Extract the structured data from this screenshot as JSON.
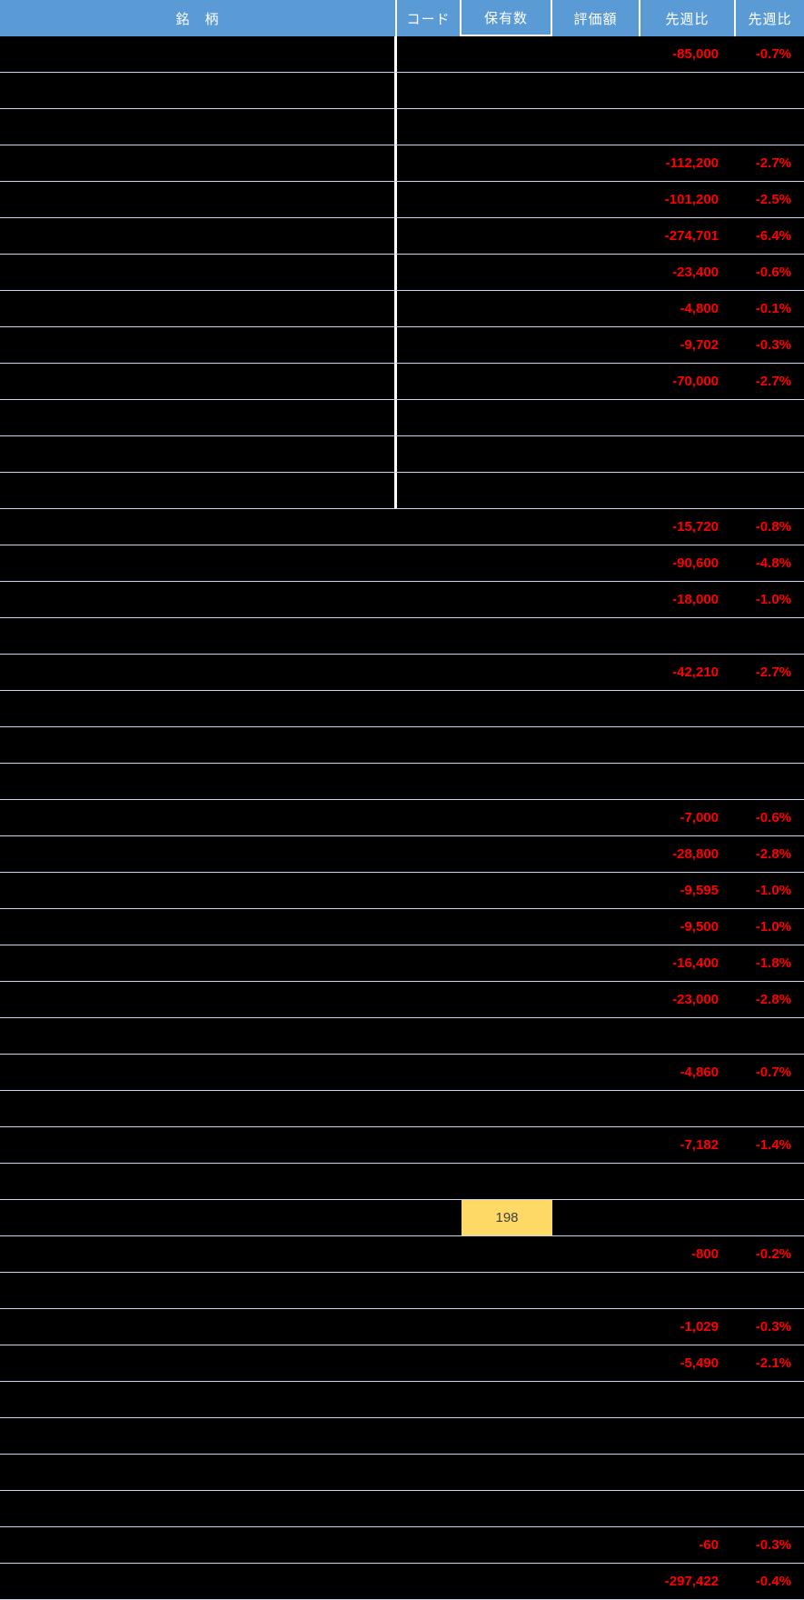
{
  "colors": {
    "header_bg": "#5b9bd5",
    "header_text": "#ffffff",
    "row_bg": "#000000",
    "gridline": "#c9d6e8",
    "divider": "#ffffff",
    "negative": "#ff0000",
    "highlight_bg": "#ffd966",
    "highlight_text": "#3f3f3f"
  },
  "table": {
    "columns": [
      {
        "key": "name",
        "label": "銘　柄"
      },
      {
        "key": "code",
        "label": "コード"
      },
      {
        "key": "holdings",
        "label": "保有数"
      },
      {
        "key": "valuation",
        "label": "評価額"
      },
      {
        "key": "wow",
        "label": "先週比"
      },
      {
        "key": "wow_pct",
        "label": "先週比"
      }
    ],
    "highlight": {
      "row": 33,
      "column": "holdings",
      "value": "198"
    },
    "rows": [
      {
        "name": "",
        "code": "",
        "holdings": "",
        "valuation": "",
        "wow": "-85,000",
        "wow_pct": "-0.7%"
      },
      {
        "name": "",
        "code": "",
        "holdings": "",
        "valuation": "",
        "wow": "",
        "wow_pct": ""
      },
      {
        "name": "",
        "code": "",
        "holdings": "",
        "valuation": "",
        "wow": "",
        "wow_pct": ""
      },
      {
        "name": "",
        "code": "",
        "holdings": "",
        "valuation": "",
        "wow": "-112,200",
        "wow_pct": "-2.7%"
      },
      {
        "name": "",
        "code": "",
        "holdings": "",
        "valuation": "",
        "wow": "-101,200",
        "wow_pct": "-2.5%"
      },
      {
        "name": "",
        "code": "",
        "holdings": "",
        "valuation": "",
        "wow": "-274,701",
        "wow_pct": "-6.4%"
      },
      {
        "name": "",
        "code": "",
        "holdings": "",
        "valuation": "",
        "wow": "-23,400",
        "wow_pct": "-0.6%"
      },
      {
        "name": "",
        "code": "",
        "holdings": "",
        "valuation": "",
        "wow": "-4,800",
        "wow_pct": "-0.1%"
      },
      {
        "name": "",
        "code": "",
        "holdings": "",
        "valuation": "",
        "wow": "-9,702",
        "wow_pct": "-0.3%"
      },
      {
        "name": "",
        "code": "",
        "holdings": "",
        "valuation": "",
        "wow": "-70,000",
        "wow_pct": "-2.7%"
      },
      {
        "name": "",
        "code": "",
        "holdings": "",
        "valuation": "",
        "wow": "",
        "wow_pct": ""
      },
      {
        "name": "",
        "code": "",
        "holdings": "",
        "valuation": "",
        "wow": "",
        "wow_pct": ""
      },
      {
        "name": "",
        "code": "",
        "holdings": "",
        "valuation": "",
        "wow": "",
        "wow_pct": ""
      },
      {
        "name": "",
        "code": "",
        "holdings": "",
        "valuation": "",
        "wow": "-15,720",
        "wow_pct": "-0.8%"
      },
      {
        "name": "",
        "code": "",
        "holdings": "",
        "valuation": "",
        "wow": "-90,600",
        "wow_pct": "-4.8%"
      },
      {
        "name": "",
        "code": "",
        "holdings": "",
        "valuation": "",
        "wow": "-18,000",
        "wow_pct": "-1.0%"
      },
      {
        "name": "",
        "code": "",
        "holdings": "",
        "valuation": "",
        "wow": "",
        "wow_pct": ""
      },
      {
        "name": "",
        "code": "",
        "holdings": "",
        "valuation": "",
        "wow": "-42,210",
        "wow_pct": "-2.7%"
      },
      {
        "name": "",
        "code": "",
        "holdings": "",
        "valuation": "",
        "wow": "",
        "wow_pct": ""
      },
      {
        "name": "",
        "code": "",
        "holdings": "",
        "valuation": "",
        "wow": "",
        "wow_pct": ""
      },
      {
        "name": "",
        "code": "",
        "holdings": "",
        "valuation": "",
        "wow": "",
        "wow_pct": ""
      },
      {
        "name": "",
        "code": "",
        "holdings": "",
        "valuation": "",
        "wow": "-7,000",
        "wow_pct": "-0.6%"
      },
      {
        "name": "",
        "code": "",
        "holdings": "",
        "valuation": "",
        "wow": "-28,800",
        "wow_pct": "-2.8%"
      },
      {
        "name": "",
        "code": "",
        "holdings": "",
        "valuation": "",
        "wow": "-9,595",
        "wow_pct": "-1.0%"
      },
      {
        "name": "",
        "code": "",
        "holdings": "",
        "valuation": "",
        "wow": "-9,500",
        "wow_pct": "-1.0%"
      },
      {
        "name": "",
        "code": "",
        "holdings": "",
        "valuation": "",
        "wow": "-16,400",
        "wow_pct": "-1.8%"
      },
      {
        "name": "",
        "code": "",
        "holdings": "",
        "valuation": "",
        "wow": "-23,000",
        "wow_pct": "-2.8%"
      },
      {
        "name": "",
        "code": "",
        "holdings": "",
        "valuation": "",
        "wow": "",
        "wow_pct": ""
      },
      {
        "name": "",
        "code": "",
        "holdings": "",
        "valuation": "",
        "wow": "-4,860",
        "wow_pct": "-0.7%"
      },
      {
        "name": "",
        "code": "",
        "holdings": "",
        "valuation": "",
        "wow": "",
        "wow_pct": ""
      },
      {
        "name": "",
        "code": "",
        "holdings": "",
        "valuation": "",
        "wow": "-7,182",
        "wow_pct": "-1.4%"
      },
      {
        "name": "",
        "code": "",
        "holdings": "",
        "valuation": "",
        "wow": "",
        "wow_pct": ""
      },
      {
        "name": "",
        "code": "",
        "holdings": "198",
        "valuation": "",
        "wow": "",
        "wow_pct": "",
        "holdings_highlight": true
      },
      {
        "name": "",
        "code": "",
        "holdings": "",
        "valuation": "",
        "wow": "-800",
        "wow_pct": "-0.2%"
      },
      {
        "name": "",
        "code": "",
        "holdings": "",
        "valuation": "",
        "wow": "",
        "wow_pct": ""
      },
      {
        "name": "",
        "code": "",
        "holdings": "",
        "valuation": "",
        "wow": "-1,029",
        "wow_pct": "-0.3%"
      },
      {
        "name": "",
        "code": "",
        "holdings": "",
        "valuation": "",
        "wow": "-5,490",
        "wow_pct": "-2.1%"
      },
      {
        "name": "",
        "code": "",
        "holdings": "",
        "valuation": "",
        "wow": "",
        "wow_pct": ""
      },
      {
        "name": "",
        "code": "",
        "holdings": "",
        "valuation": "",
        "wow": "",
        "wow_pct": ""
      },
      {
        "name": "",
        "code": "",
        "holdings": "",
        "valuation": "",
        "wow": "",
        "wow_pct": ""
      },
      {
        "name": "",
        "code": "",
        "holdings": "",
        "valuation": "",
        "wow": "",
        "wow_pct": ""
      },
      {
        "name": "",
        "code": "",
        "holdings": "",
        "valuation": "",
        "wow": "-60",
        "wow_pct": "-0.3%"
      },
      {
        "name": "",
        "code": "",
        "holdings": "",
        "valuation": "",
        "wow": "-297,422",
        "wow_pct": "-0.4%"
      }
    ]
  }
}
